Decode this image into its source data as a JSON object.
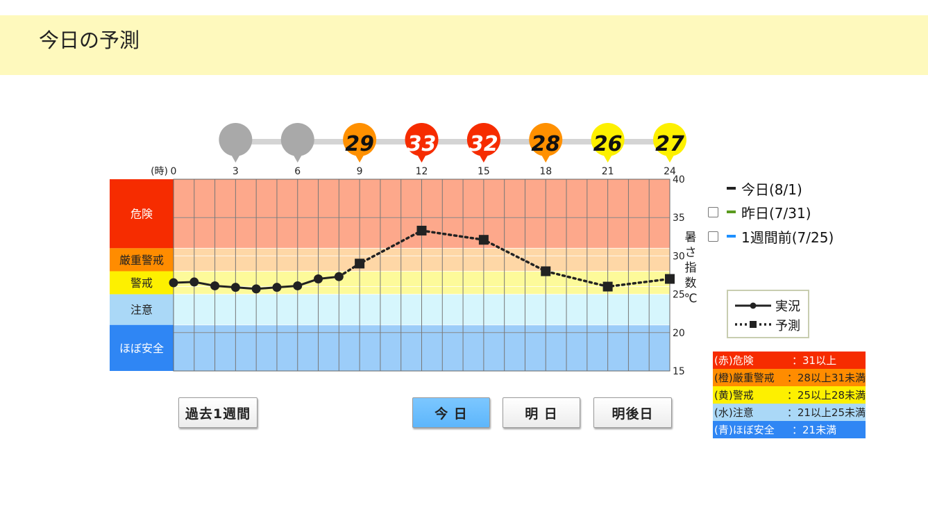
{
  "header": {
    "title": "今日の予測"
  },
  "chart_data": {
    "type": "line",
    "x_unit_label": "(時)",
    "x_ticks": [
      "0",
      "3",
      "6",
      "9",
      "12",
      "15",
      "18",
      "21",
      "24"
    ],
    "y_ticks": [
      "15",
      "20",
      "25",
      "30",
      "35",
      "40"
    ],
    "ylim": [
      15,
      40
    ],
    "xlim": [
      0,
      24
    ],
    "ylabel": "暑さ指数(℃)",
    "bands": [
      {
        "label": "危険",
        "from": 31,
        "to": 40,
        "label_color": "#f62c00",
        "plot_color": "#fda88b"
      },
      {
        "label": "厳重警戒",
        "from": 28,
        "to": 31,
        "label_color": "#ff8c00",
        "plot_color": "#fed7a6"
      },
      {
        "label": "警戒",
        "from": 25,
        "to": 28,
        "label_color": "#fdf000",
        "plot_color": "#fdfa9a"
      },
      {
        "label": "注意",
        "from": 21,
        "to": 25,
        "label_color": "#aad8f7",
        "plot_color": "#d6f6fd"
      },
      {
        "label": "ほぼ安全",
        "from": 15,
        "to": 21,
        "label_color": "#2f86f4",
        "plot_color": "#9ccdf9"
      }
    ],
    "series": [
      {
        "name": "実況",
        "style": "solid-circle",
        "x": [
          0,
          1,
          2,
          3,
          4,
          5,
          6,
          7,
          8
        ],
        "y": [
          26.5,
          26.6,
          26.1,
          25.9,
          25.7,
          25.9,
          26.1,
          27.0,
          27.3
        ]
      },
      {
        "name": "予測",
        "style": "dotted-square",
        "x": [
          8,
          9,
          12,
          15,
          18,
          21,
          24
        ],
        "y": [
          27.3,
          29.0,
          33.3,
          32.1,
          28.0,
          26.0,
          27.0
        ]
      }
    ],
    "markers": [
      {
        "hour": 3,
        "value": "",
        "color": "#a9a9a9"
      },
      {
        "hour": 6,
        "value": "",
        "color": "#a9a9a9"
      },
      {
        "hour": 9,
        "value": "29",
        "color": "#ff9000"
      },
      {
        "hour": 12,
        "value": "33",
        "color": "#f62c00"
      },
      {
        "hour": 15,
        "value": "32",
        "color": "#f62c00"
      },
      {
        "hour": 18,
        "value": "28",
        "color": "#ff9000"
      },
      {
        "hour": 21,
        "value": "26",
        "color": "#fdf000"
      },
      {
        "hour": 24,
        "value": "27",
        "color": "#fdf000"
      }
    ]
  },
  "compare_legend": [
    {
      "label": "今日(8/1)",
      "color": "#222222",
      "checkbox": false
    },
    {
      "label": "昨日(7/31)",
      "color": "#5a9a1e",
      "checkbox": true
    },
    {
      "label": "1週間前(7/25)",
      "color": "#1e90ff",
      "checkbox": true
    }
  ],
  "line_legend": {
    "actual": "実況",
    "forecast": "予測"
  },
  "range_legend": [
    {
      "name": "(赤)危険",
      "range": "：31以上",
      "bg": "#f62c00",
      "fg": "#ffffff"
    },
    {
      "name": "(橙)厳重警戒",
      "range": "：28以上31未満",
      "bg": "#ff8c00",
      "fg": "#222222"
    },
    {
      "name": "(黄)警戒",
      "range": "：25以上28未満",
      "bg": "#fdf000",
      "fg": "#222222"
    },
    {
      "name": "(水)注意",
      "range": "：21以上25未満",
      "bg": "#aad8f7",
      "fg": "#222222"
    },
    {
      "name": "(青)ほぼ安全",
      "range": "：21未満",
      "bg": "#2f86f4",
      "fg": "#ffffff"
    }
  ],
  "buttons": {
    "past_week": "過去1週間",
    "today": "今 日",
    "tomorrow": "明 日",
    "day_after": "明後日"
  }
}
